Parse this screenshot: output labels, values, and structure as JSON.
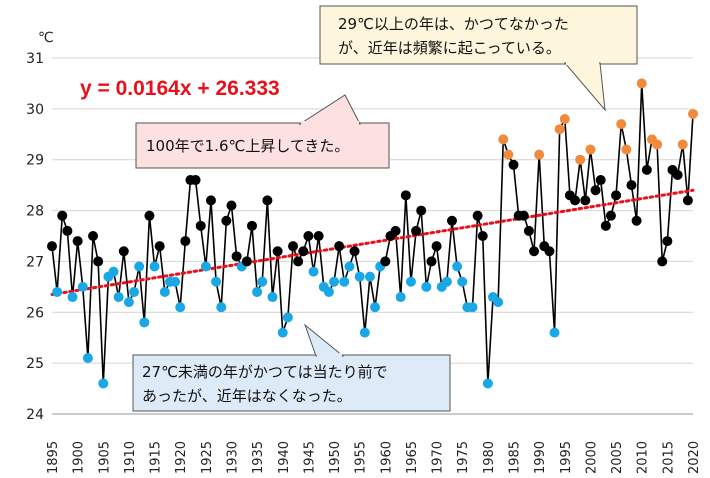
{
  "chart_data": {
    "type": "scatter",
    "unit_label": "℃",
    "x": [
      1895,
      1896,
      1897,
      1898,
      1899,
      1900,
      1901,
      1902,
      1903,
      1904,
      1905,
      1906,
      1907,
      1908,
      1909,
      1910,
      1911,
      1912,
      1913,
      1914,
      1915,
      1916,
      1917,
      1918,
      1919,
      1920,
      1921,
      1922,
      1923,
      1924,
      1925,
      1926,
      1927,
      1928,
      1929,
      1930,
      1931,
      1932,
      1933,
      1934,
      1935,
      1936,
      1937,
      1938,
      1939,
      1940,
      1941,
      1942,
      1943,
      1944,
      1945,
      1946,
      1947,
      1948,
      1949,
      1950,
      1951,
      1952,
      1953,
      1954,
      1955,
      1956,
      1957,
      1958,
      1959,
      1960,
      1961,
      1962,
      1963,
      1964,
      1965,
      1966,
      1967,
      1968,
      1969,
      1970,
      1971,
      1972,
      1973,
      1974,
      1975,
      1976,
      1977,
      1978,
      1979,
      1980,
      1981,
      1982,
      1983,
      1984,
      1985,
      1986,
      1987,
      1988,
      1989,
      1990,
      1991,
      1992,
      1993,
      1994,
      1995,
      1996,
      1997,
      1998,
      1999,
      2000,
      2001,
      2002,
      2003,
      2004,
      2005,
      2006,
      2007,
      2008,
      2009,
      2010,
      2011,
      2012,
      2013,
      2014,
      2015,
      2016,
      2017,
      2018,
      2019,
      2020
    ],
    "y": [
      27.3,
      26.4,
      27.9,
      27.6,
      26.3,
      27.4,
      26.5,
      25.1,
      27.5,
      27.0,
      24.6,
      26.7,
      26.8,
      26.3,
      27.2,
      26.2,
      26.4,
      26.9,
      25.8,
      27.9,
      26.9,
      27.3,
      26.4,
      26.6,
      26.6,
      26.1,
      27.4,
      28.6,
      28.6,
      27.7,
      26.9,
      28.2,
      26.6,
      26.1,
      27.8,
      28.1,
      27.1,
      26.9,
      27.0,
      27.7,
      26.4,
      26.6,
      28.2,
      26.3,
      27.2,
      25.6,
      25.9,
      27.3,
      27.0,
      27.2,
      27.5,
      26.8,
      27.5,
      26.5,
      26.4,
      26.6,
      27.3,
      26.6,
      26.9,
      27.2,
      26.7,
      25.6,
      26.7,
      26.1,
      26.9,
      27.0,
      27.5,
      27.6,
      26.3,
      28.3,
      26.6,
      27.6,
      28.0,
      26.5,
      27.0,
      27.3,
      26.5,
      26.6,
      27.8,
      26.9,
      26.6,
      26.1,
      26.1,
      27.9,
      27.5,
      24.6,
      26.3,
      26.2,
      29.4,
      29.1,
      28.9,
      27.9,
      27.9,
      27.6,
      27.2,
      29.1,
      27.3,
      27.2,
      25.6,
      29.6,
      29.8,
      28.3,
      28.2,
      29.0,
      28.2,
      29.2,
      28.4,
      28.6,
      27.7,
      27.9,
      28.3,
      29.7,
      29.2,
      28.5,
      27.8,
      30.5,
      28.8,
      29.4,
      29.3,
      27.0,
      27.4,
      28.8,
      28.7,
      29.3,
      28.2,
      29.9
    ],
    "ylim": [
      24,
      31
    ],
    "xlim": [
      1895,
      2020
    ],
    "yticks": [
      24,
      25,
      26,
      27,
      28,
      29,
      30,
      31
    ],
    "xticks": [
      1895,
      1900,
      1905,
      1910,
      1915,
      1920,
      1925,
      1930,
      1935,
      1940,
      1945,
      1950,
      1955,
      1960,
      1965,
      1970,
      1975,
      1980,
      1985,
      1990,
      1995,
      2000,
      2005,
      2010,
      2015,
      2020
    ],
    "trend": {
      "slope": 0.0164,
      "intercept": 26.333,
      "equation": "y = 0.0164x + 26.333",
      "color": "#e8101a"
    },
    "colors": {
      "below27": "#1aa7e6",
      "normal": "#000000",
      "above29": "#f08a3c",
      "line": "#000000"
    },
    "annotations": {
      "trend_note": "100年で1.6℃上昇してきた。",
      "hot_note_line1": "29℃以上の年は、かつてなかった",
      "hot_note_line2": "が、近年は頻繁に起こっている。",
      "cold_note_line1": "27℃未満の年がかつては当たり前で",
      "cold_note_line2": "あったが、近年はなくなった。"
    },
    "grid": "horizontal",
    "legend": "none"
  }
}
